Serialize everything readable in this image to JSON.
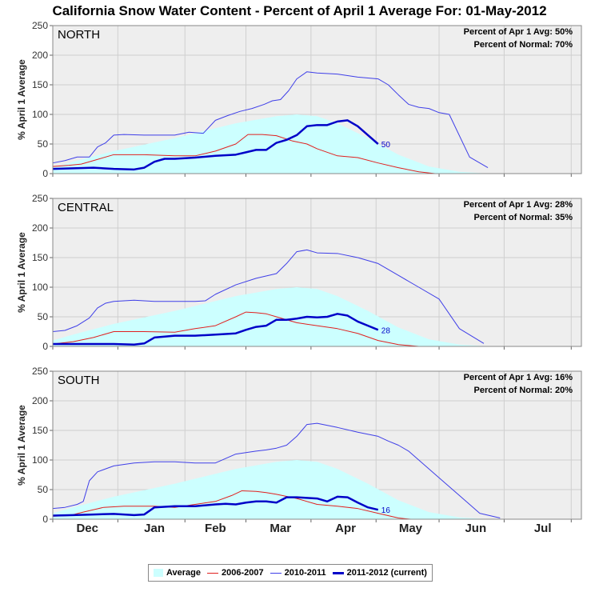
{
  "title": "California Snow Water Content - Percent of April 1 Average For: 01-May-2012",
  "chart_data": [
    {
      "type": "area",
      "region": "NORTH",
      "ylabel": "% April 1 Average",
      "ylim": [
        0,
        250
      ],
      "yticks": [
        0,
        50,
        100,
        150,
        200,
        250
      ],
      "grid": true,
      "stats": [
        "Percent of Apr 1 Avg: 50%",
        "Percent of Normal: 70%"
      ],
      "end_label": "50",
      "series": [
        {
          "name": "Average",
          "x": [
            0,
            10,
            30,
            60,
            90,
            110,
            120,
            130,
            140,
            155,
            170,
            185,
            200,
            215
          ],
          "values": [
            10,
            20,
            38,
            60,
            85,
            97,
            100,
            97,
            85,
            60,
            32,
            12,
            3,
            0
          ]
        },
        {
          "name": "2006-2007",
          "x": [
            0,
            8,
            14,
            20,
            30,
            45,
            60,
            70,
            80,
            90,
            96,
            103,
            110,
            118,
            125,
            130,
            140,
            150,
            160,
            170,
            180,
            188
          ],
          "values": [
            12,
            14,
            16,
            22,
            32,
            32,
            30,
            30,
            38,
            50,
            66,
            66,
            64,
            55,
            50,
            42,
            30,
            27,
            18,
            10,
            3,
            0
          ]
        },
        {
          "name": "2010-2011",
          "x": [
            0,
            6,
            12,
            18,
            22,
            26,
            30,
            35,
            45,
            60,
            67,
            74,
            80,
            86,
            92,
            98,
            104,
            108,
            112,
            116,
            120,
            125,
            130,
            140,
            150,
            160,
            165,
            170,
            175,
            180,
            185,
            190,
            195,
            205,
            214
          ],
          "values": [
            18,
            22,
            28,
            28,
            45,
            52,
            65,
            66,
            65,
            65,
            70,
            68,
            90,
            98,
            105,
            110,
            117,
            123,
            125,
            140,
            160,
            172,
            170,
            168,
            163,
            160,
            150,
            133,
            117,
            112,
            110,
            103,
            100,
            28,
            10
          ]
        },
        {
          "name": "2011-2012 (current)",
          "x": [
            0,
            10,
            20,
            30,
            40,
            45,
            50,
            55,
            60,
            70,
            80,
            90,
            95,
            100,
            105,
            110,
            115,
            120,
            125,
            130,
            135,
            140,
            145,
            150,
            155,
            160
          ],
          "values": [
            8,
            9,
            10,
            8,
            7,
            10,
            20,
            25,
            25,
            27,
            30,
            32,
            36,
            40,
            40,
            52,
            57,
            65,
            80,
            82,
            82,
            88,
            90,
            80,
            65,
            50
          ]
        }
      ]
    },
    {
      "type": "area",
      "region": "CENTRAL",
      "ylabel": "% April 1 Average",
      "ylim": [
        0,
        250
      ],
      "yticks": [
        0,
        50,
        100,
        150,
        200,
        250
      ],
      "grid": true,
      "stats": [
        "Percent of Apr 1 Avg: 28%",
        "Percent of Normal: 35%"
      ],
      "end_label": "28",
      "series": [
        {
          "name": "Average",
          "x": [
            0,
            10,
            30,
            60,
            90,
            110,
            120,
            130,
            140,
            155,
            170,
            185,
            200,
            215
          ],
          "values": [
            10,
            20,
            38,
            60,
            85,
            97,
            100,
            97,
            85,
            60,
            32,
            12,
            3,
            0
          ]
        },
        {
          "name": "2006-2007",
          "x": [
            0,
            10,
            20,
            30,
            45,
            60,
            70,
            80,
            90,
            95,
            100,
            105,
            110,
            120,
            130,
            140,
            150,
            160,
            170,
            180,
            188
          ],
          "values": [
            4,
            8,
            15,
            25,
            25,
            24,
            30,
            35,
            50,
            58,
            57,
            55,
            50,
            40,
            35,
            30,
            22,
            10,
            3,
            0,
            0
          ]
        },
        {
          "name": "2010-2011",
          "x": [
            0,
            6,
            12,
            18,
            22,
            26,
            30,
            40,
            50,
            60,
            70,
            75,
            80,
            90,
            100,
            110,
            115,
            120,
            125,
            130,
            140,
            150,
            160,
            170,
            180,
            190,
            200,
            212
          ],
          "values": [
            25,
            27,
            35,
            48,
            65,
            73,
            76,
            78,
            76,
            76,
            76,
            77,
            88,
            104,
            115,
            123,
            140,
            160,
            163,
            158,
            157,
            150,
            140,
            120,
            100,
            80,
            30,
            5
          ]
        },
        {
          "name": "2011-2012 (current)",
          "x": [
            0,
            10,
            20,
            30,
            40,
            45,
            50,
            60,
            70,
            80,
            90,
            95,
            100,
            105,
            110,
            115,
            120,
            125,
            130,
            135,
            140,
            145,
            150,
            155,
            160
          ],
          "values": [
            4,
            4,
            4,
            4,
            3,
            5,
            15,
            18,
            18,
            20,
            22,
            28,
            33,
            35,
            45,
            45,
            47,
            50,
            49,
            50,
            55,
            52,
            42,
            35,
            28
          ]
        }
      ]
    },
    {
      "type": "area",
      "region": "SOUTH",
      "ylabel": "% April 1 Average",
      "ylim": [
        0,
        250
      ],
      "yticks": [
        0,
        50,
        100,
        150,
        200,
        250
      ],
      "grid": true,
      "stats": [
        "Percent of Apr 1 Avg: 16%",
        "Percent of Normal: 20%"
      ],
      "end_label": "16",
      "series": [
        {
          "name": "Average",
          "x": [
            0,
            10,
            30,
            60,
            90,
            110,
            120,
            130,
            140,
            155,
            170,
            185,
            200,
            215
          ],
          "values": [
            10,
            20,
            38,
            60,
            85,
            97,
            100,
            97,
            85,
            60,
            32,
            12,
            3,
            0
          ]
        },
        {
          "name": "2006-2007",
          "x": [
            0,
            8,
            15,
            25,
            35,
            50,
            60,
            70,
            80,
            88,
            93,
            100,
            105,
            110,
            120,
            130,
            140,
            150,
            160,
            170,
            176
          ],
          "values": [
            5,
            6,
            12,
            20,
            22,
            22,
            20,
            25,
            30,
            40,
            48,
            47,
            45,
            42,
            35,
            25,
            22,
            18,
            10,
            2,
            0
          ]
        },
        {
          "name": "2010-2011",
          "x": [
            0,
            6,
            12,
            15,
            18,
            22,
            30,
            40,
            50,
            60,
            70,
            80,
            90,
            100,
            105,
            110,
            115,
            120,
            125,
            130,
            140,
            150,
            160,
            165,
            170,
            175,
            180,
            190,
            200,
            210,
            220
          ],
          "values": [
            18,
            20,
            25,
            30,
            65,
            80,
            90,
            95,
            97,
            97,
            95,
            95,
            110,
            115,
            117,
            120,
            125,
            140,
            160,
            162,
            155,
            147,
            140,
            132,
            125,
            115,
            100,
            70,
            40,
            10,
            2
          ]
        },
        {
          "name": "2011-2012 (current)",
          "x": [
            0,
            10,
            20,
            30,
            40,
            45,
            50,
            60,
            70,
            80,
            85,
            90,
            95,
            100,
            105,
            110,
            115,
            120,
            125,
            130,
            135,
            140,
            145,
            150,
            155,
            160
          ],
          "values": [
            6,
            7,
            8,
            9,
            7,
            8,
            20,
            22,
            22,
            25,
            26,
            25,
            28,
            30,
            30,
            28,
            37,
            37,
            36,
            35,
            30,
            38,
            37,
            28,
            20,
            16
          ]
        }
      ]
    }
  ],
  "x_axis": {
    "xlim": [
      0,
      260
    ],
    "months": [
      {
        "label": "Dec",
        "pos": 17
      },
      {
        "label": "Jan",
        "pos": 50
      },
      {
        "label": "Feb",
        "pos": 80
      },
      {
        "label": "Mar",
        "pos": 112
      },
      {
        "label": "Apr",
        "pos": 144
      },
      {
        "label": "May",
        "pos": 176
      },
      {
        "label": "Jun",
        "pos": 208
      },
      {
        "label": "Jul",
        "pos": 241
      }
    ],
    "ticks": [
      0,
      32,
      65,
      95,
      127,
      159,
      190,
      222,
      255
    ]
  },
  "legend": {
    "items": [
      {
        "name": "Average",
        "kind": "fill",
        "color": "#ccffff"
      },
      {
        "name": "2006-2007",
        "kind": "line",
        "color": "#e0201f"
      },
      {
        "name": "2010-2011",
        "kind": "line",
        "color": "#3f3fe8"
      },
      {
        "name": "2011-2012 (current)",
        "kind": "bold",
        "color": "#0000c8"
      }
    ]
  },
  "colors": {
    "plot_bg": "#eeeeee",
    "grid": "#cfcfcf",
    "average_fill": "#ccffff",
    "series_2006_2007": "#e0201f",
    "series_2010_2011": "#3f3fe8",
    "series_current": "#0000c8"
  }
}
